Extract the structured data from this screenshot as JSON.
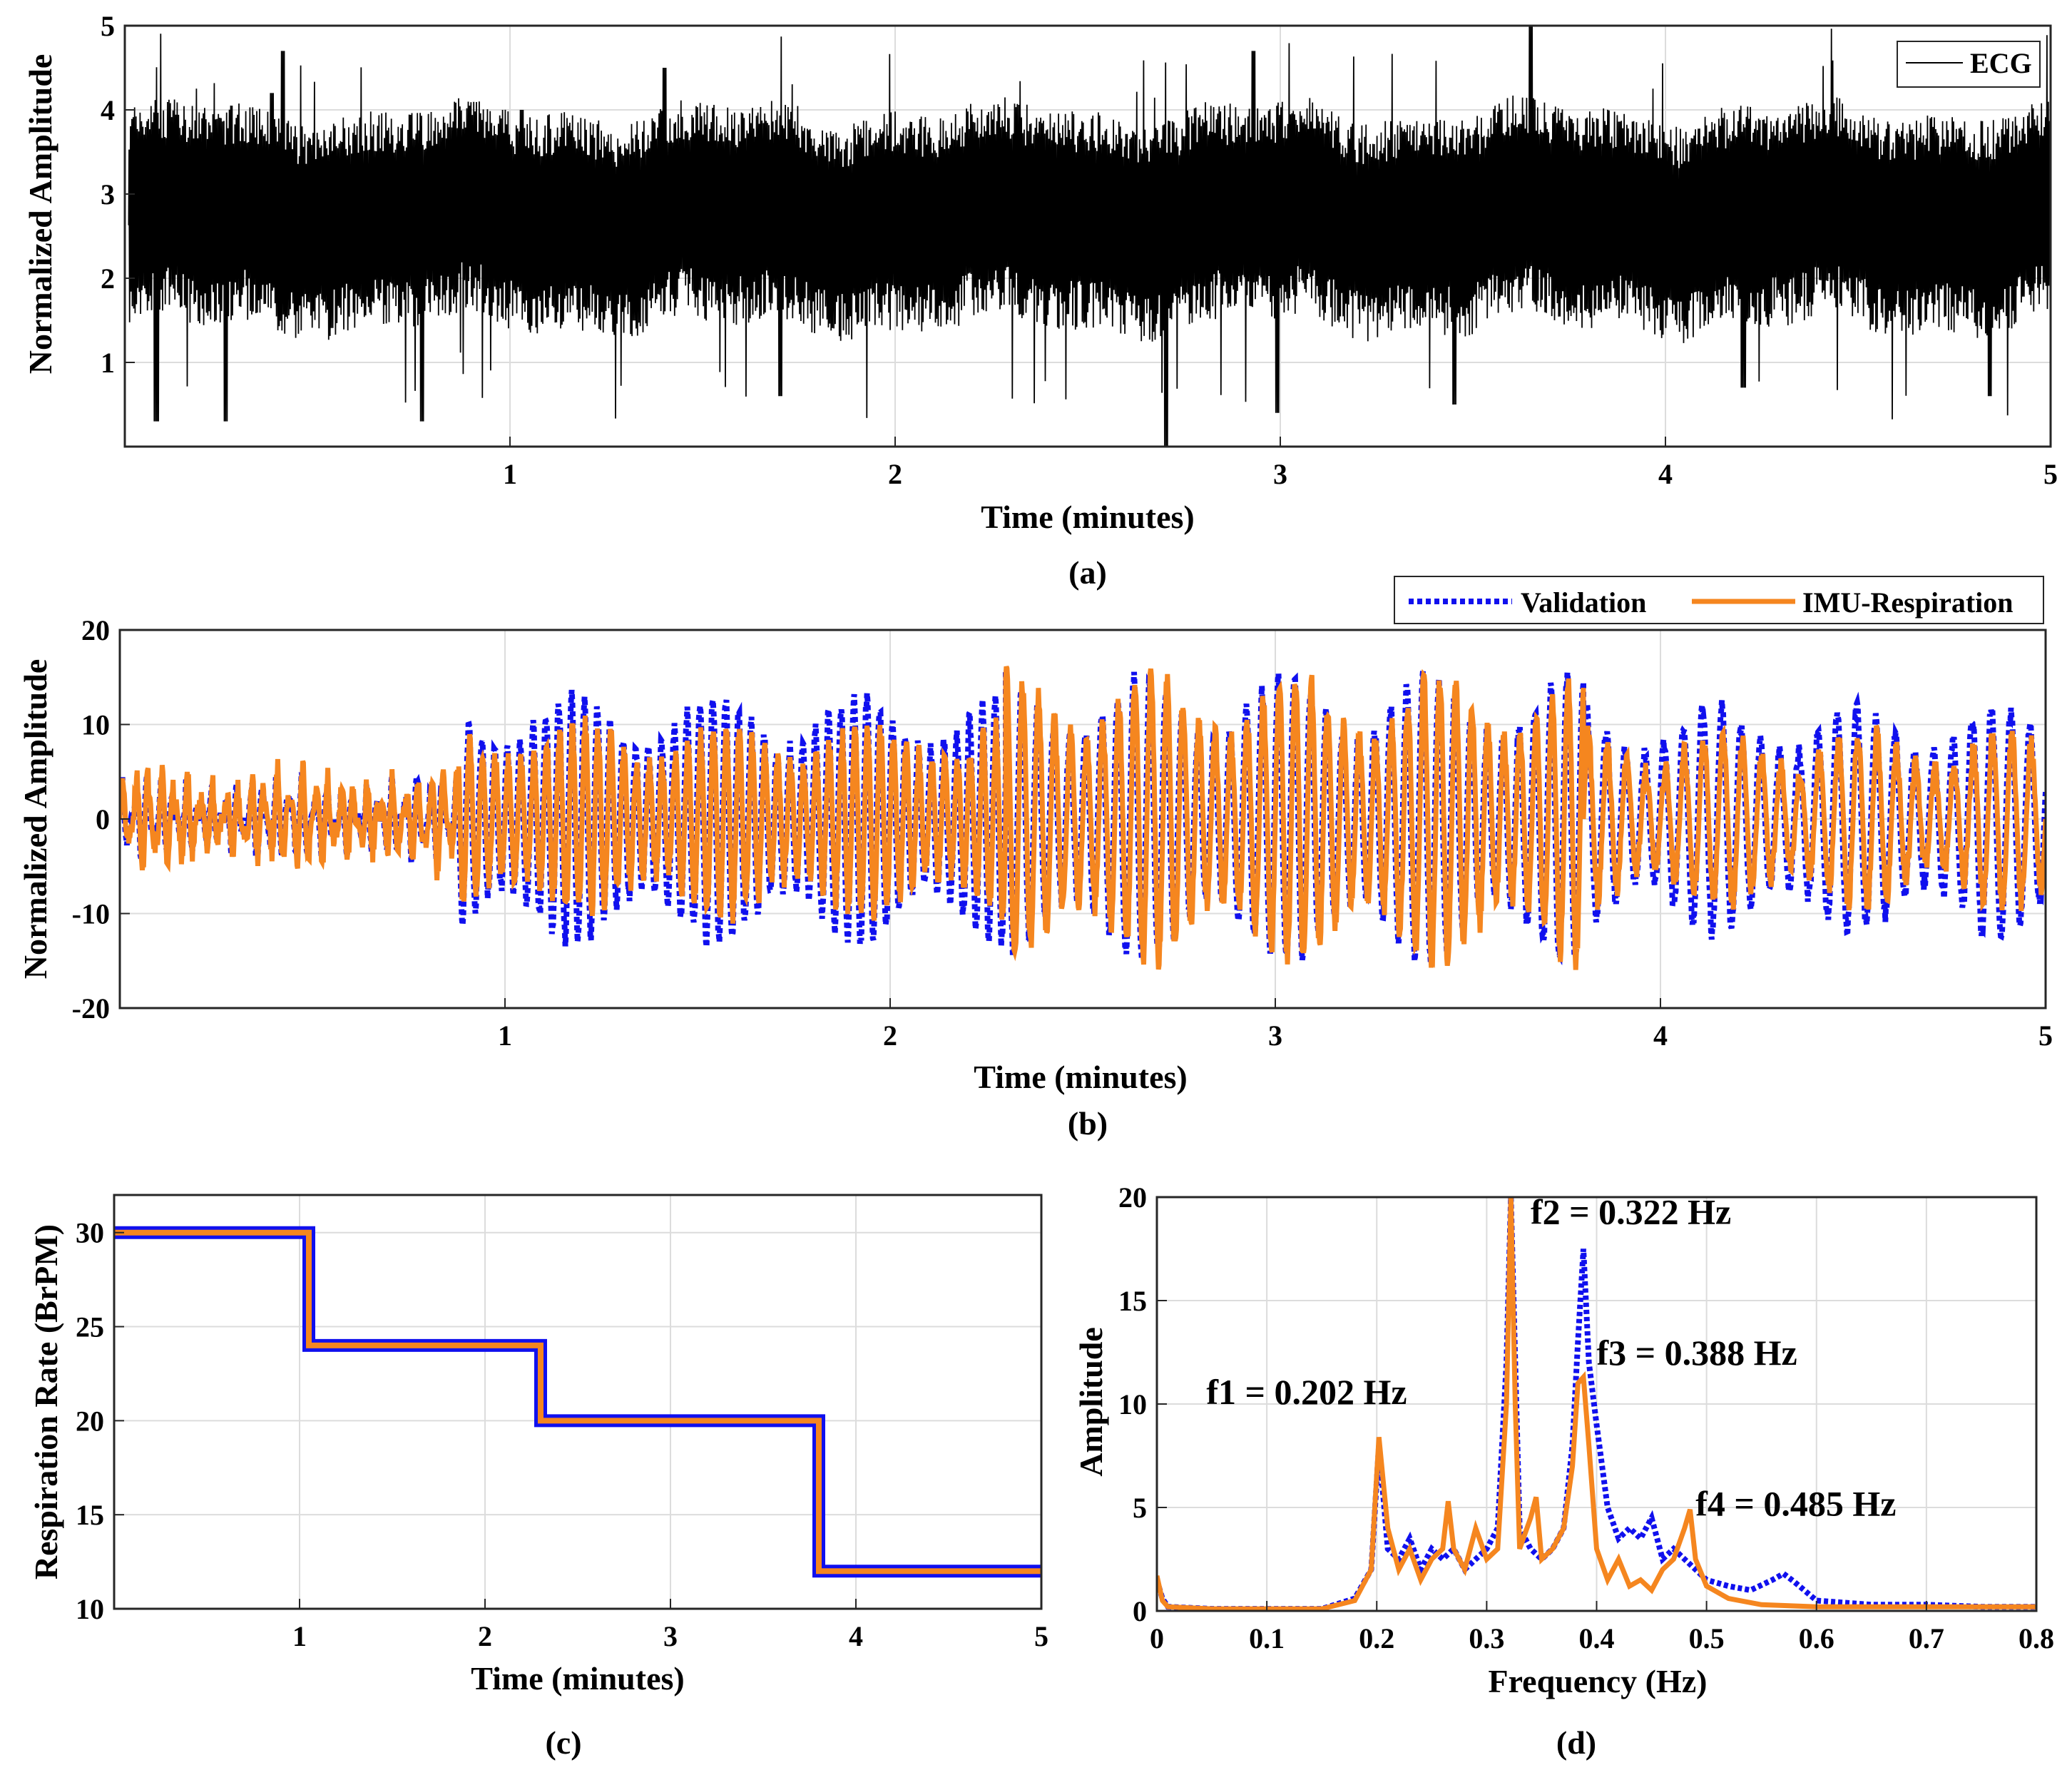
{
  "figure": {
    "captions": [
      "(a)",
      "(b)",
      "(c)",
      "(d)"
    ]
  },
  "colors": {
    "ecg": "#000000",
    "validation": "#1010ee",
    "imu": "#f5861f",
    "grid": "#dcdcdc",
    "axis": "#262626"
  },
  "chart_data": [
    {
      "id": "a",
      "type": "line",
      "caption": "(a)",
      "title": "",
      "xlabel": "Time (minutes)",
      "ylabel": "Normalized Amplitude",
      "xlim": [
        0,
        5
      ],
      "ylim": [
        0,
        5
      ],
      "xticks": [
        1,
        2,
        3,
        4,
        5
      ],
      "yticks": [
        1,
        2,
        3,
        4,
        5
      ],
      "grid": true,
      "legend": {
        "position": "top-right",
        "entries": [
          "ECG"
        ]
      },
      "series": [
        {
          "name": "ECG",
          "style": "solid",
          "baseline": 2.6,
          "note": "dense ECG beats, approx. 2.6 baseline, peaks 3.7-5.0, troughs 0.3-2.0",
          "large_peaks_x": [
            0.38,
            0.41,
            1.03,
            1.4,
            2.93,
            3.65
          ],
          "large_peaks_y": [
            4.2,
            4.7,
            4.0,
            4.5,
            4.7,
            5.0
          ],
          "deep_troughs_x": [
            0.08,
            0.26,
            0.77,
            1.7,
            2.7,
            2.99,
            3.45,
            4.2,
            4.84
          ],
          "deep_troughs_y": [
            0.3,
            0.3,
            0.3,
            0.6,
            0.0,
            0.4,
            0.5,
            0.7,
            0.6
          ]
        }
      ]
    },
    {
      "id": "b",
      "type": "line",
      "caption": "(b)",
      "title": "",
      "xlabel": "Time (minutes)",
      "ylabel": "Normalized Amplitude",
      "xlim": [
        0,
        5
      ],
      "ylim": [
        -20,
        20
      ],
      "xticks": [
        1,
        2,
        3,
        4,
        5
      ],
      "yticks": [
        -20,
        -10,
        0,
        10,
        20
      ],
      "grid": true,
      "legend": {
        "position": "top-right-outside",
        "entries": [
          "Validation",
          "IMU-Respiration"
        ]
      },
      "series": [
        {
          "name": "Validation",
          "style": "dotted",
          "segments": [
            {
              "x": [
                0,
                0.88
              ],
              "freq_bpm": 30,
              "amp": 3
            },
            {
              "x": [
                0.88,
                2.3
              ],
              "freq_bpm": 30,
              "amp": 13
            },
            {
              "x": [
                2.3,
                3.8
              ],
              "freq_bpm": 24,
              "amp": 15
            },
            {
              "x": [
                3.8,
                5.0
              ],
              "freq_bpm": 20,
              "amp": 12
            }
          ]
        },
        {
          "name": "IMU-Respiration",
          "style": "solid",
          "segments": [
            {
              "x": [
                0,
                0.88
              ],
              "freq_bpm": 30,
              "amp": 4
            },
            {
              "x": [
                0.88,
                2.3
              ],
              "freq_bpm": 30,
              "amp": 10
            },
            {
              "x": [
                2.3,
                3.8
              ],
              "freq_bpm": 24,
              "amp": 15
            },
            {
              "x": [
                3.8,
                5.0
              ],
              "freq_bpm": 20,
              "amp": 9
            }
          ]
        }
      ]
    },
    {
      "id": "c",
      "type": "line",
      "caption": "(c)",
      "title": "",
      "xlabel": "Time (minutes)",
      "ylabel": "Respiration Rate (BrPM)",
      "xlim": [
        0,
        5
      ],
      "ylim": [
        10,
        32
      ],
      "xticks": [
        1,
        2,
        3,
        4,
        5
      ],
      "yticks": [
        10,
        15,
        20,
        25,
        30
      ],
      "grid": true,
      "series": [
        {
          "name": "Validation",
          "style": "dashed",
          "x": [
            0,
            1.05,
            1.05,
            2.3,
            2.3,
            3.8,
            3.8,
            5.0
          ],
          "y": [
            30,
            30,
            24,
            24,
            20,
            20,
            12,
            12
          ]
        },
        {
          "name": "IMU-Respiration",
          "style": "solid",
          "x": [
            0,
            1.05,
            1.05,
            2.3,
            2.3,
            3.8,
            3.8,
            5.0
          ],
          "y": [
            30,
            30,
            24,
            24,
            20,
            20,
            12,
            12
          ]
        }
      ]
    },
    {
      "id": "d",
      "type": "line",
      "caption": "(d)",
      "title": "",
      "xlabel": "Frequency (Hz)",
      "ylabel": "Amplitude",
      "xlim": [
        0,
        0.8
      ],
      "ylim": [
        0,
        20
      ],
      "xticks": [
        0,
        0.1,
        0.2,
        0.3,
        0.4,
        0.5,
        0.6,
        0.7,
        0.8
      ],
      "xtick_labels": [
        "0",
        "0.1",
        "0.2",
        "0.3",
        "0.4",
        "0.5",
        "0.6",
        "0.7",
        "0.8"
      ],
      "yticks": [
        0,
        5,
        10,
        15,
        20
      ],
      "grid": true,
      "annotations": [
        {
          "text": "f1 = 0.202 Hz",
          "x": 0.045,
          "y": 10.0
        },
        {
          "text": "f2 = 0.322 Hz",
          "x": 0.34,
          "y": 18.7
        },
        {
          "text": "f3 = 0.388 Hz",
          "x": 0.4,
          "y": 11.9
        },
        {
          "text": "f4 = 0.485 Hz",
          "x": 0.49,
          "y": 4.6
        }
      ],
      "series": [
        {
          "name": "Validation",
          "style": "dotted",
          "x": [
            0,
            0.005,
            0.01,
            0.05,
            0.1,
            0.15,
            0.18,
            0.195,
            0.202,
            0.21,
            0.22,
            0.23,
            0.24,
            0.25,
            0.26,
            0.27,
            0.28,
            0.29,
            0.3,
            0.31,
            0.318,
            0.322,
            0.326,
            0.33,
            0.34,
            0.35,
            0.36,
            0.37,
            0.378,
            0.383,
            0.388,
            0.393,
            0.4,
            0.41,
            0.42,
            0.43,
            0.44,
            0.45,
            0.46,
            0.47,
            0.48,
            0.49,
            0.5,
            0.52,
            0.54,
            0.56,
            0.57,
            0.58,
            0.6,
            0.65,
            0.7,
            0.75,
            0.8
          ],
          "y": [
            1.5,
            0.6,
            0.2,
            0.1,
            0.1,
            0.1,
            0.6,
            2.0,
            8.0,
            3.0,
            2.5,
            3.5,
            2.0,
            3.0,
            2.5,
            3.0,
            2.0,
            2.5,
            3.0,
            4.0,
            12.0,
            20.0,
            12.0,
            4.0,
            3.0,
            2.5,
            3.0,
            4.0,
            8.0,
            13.0,
            17.5,
            12.0,
            9.0,
            5.0,
            3.5,
            4.0,
            3.5,
            4.5,
            2.5,
            3.0,
            2.5,
            2.0,
            1.5,
            1.2,
            1.0,
            1.5,
            1.8,
            1.4,
            0.5,
            0.3,
            0.3,
            0.2,
            0.2
          ]
        },
        {
          "name": "IMU-Respiration",
          "style": "solid",
          "x": [
            0,
            0.005,
            0.01,
            0.05,
            0.1,
            0.15,
            0.18,
            0.195,
            0.202,
            0.21,
            0.22,
            0.23,
            0.24,
            0.25,
            0.26,
            0.265,
            0.27,
            0.28,
            0.29,
            0.3,
            0.31,
            0.318,
            0.322,
            0.326,
            0.33,
            0.34,
            0.345,
            0.35,
            0.36,
            0.37,
            0.378,
            0.383,
            0.388,
            0.393,
            0.4,
            0.41,
            0.42,
            0.43,
            0.44,
            0.45,
            0.46,
            0.47,
            0.48,
            0.485,
            0.49,
            0.5,
            0.52,
            0.55,
            0.6,
            0.65,
            0.7,
            0.75,
            0.8
          ],
          "y": [
            1.7,
            0.5,
            0.2,
            0.1,
            0.1,
            0.1,
            0.5,
            2.0,
            8.4,
            4.0,
            2.0,
            3.0,
            1.5,
            2.5,
            3.0,
            5.3,
            3.0,
            2.0,
            4.0,
            2.5,
            3.0,
            10.0,
            20.0,
            10.0,
            3.0,
            4.5,
            5.5,
            2.5,
            3.0,
            4.0,
            7.0,
            11.0,
            11.3,
            8.0,
            3.0,
            1.5,
            2.5,
            1.2,
            1.5,
            1.0,
            2.0,
            2.5,
            4.0,
            4.9,
            2.5,
            1.2,
            0.6,
            0.3,
            0.2,
            0.2,
            0.2,
            0.2,
            0.2
          ]
        }
      ]
    }
  ]
}
